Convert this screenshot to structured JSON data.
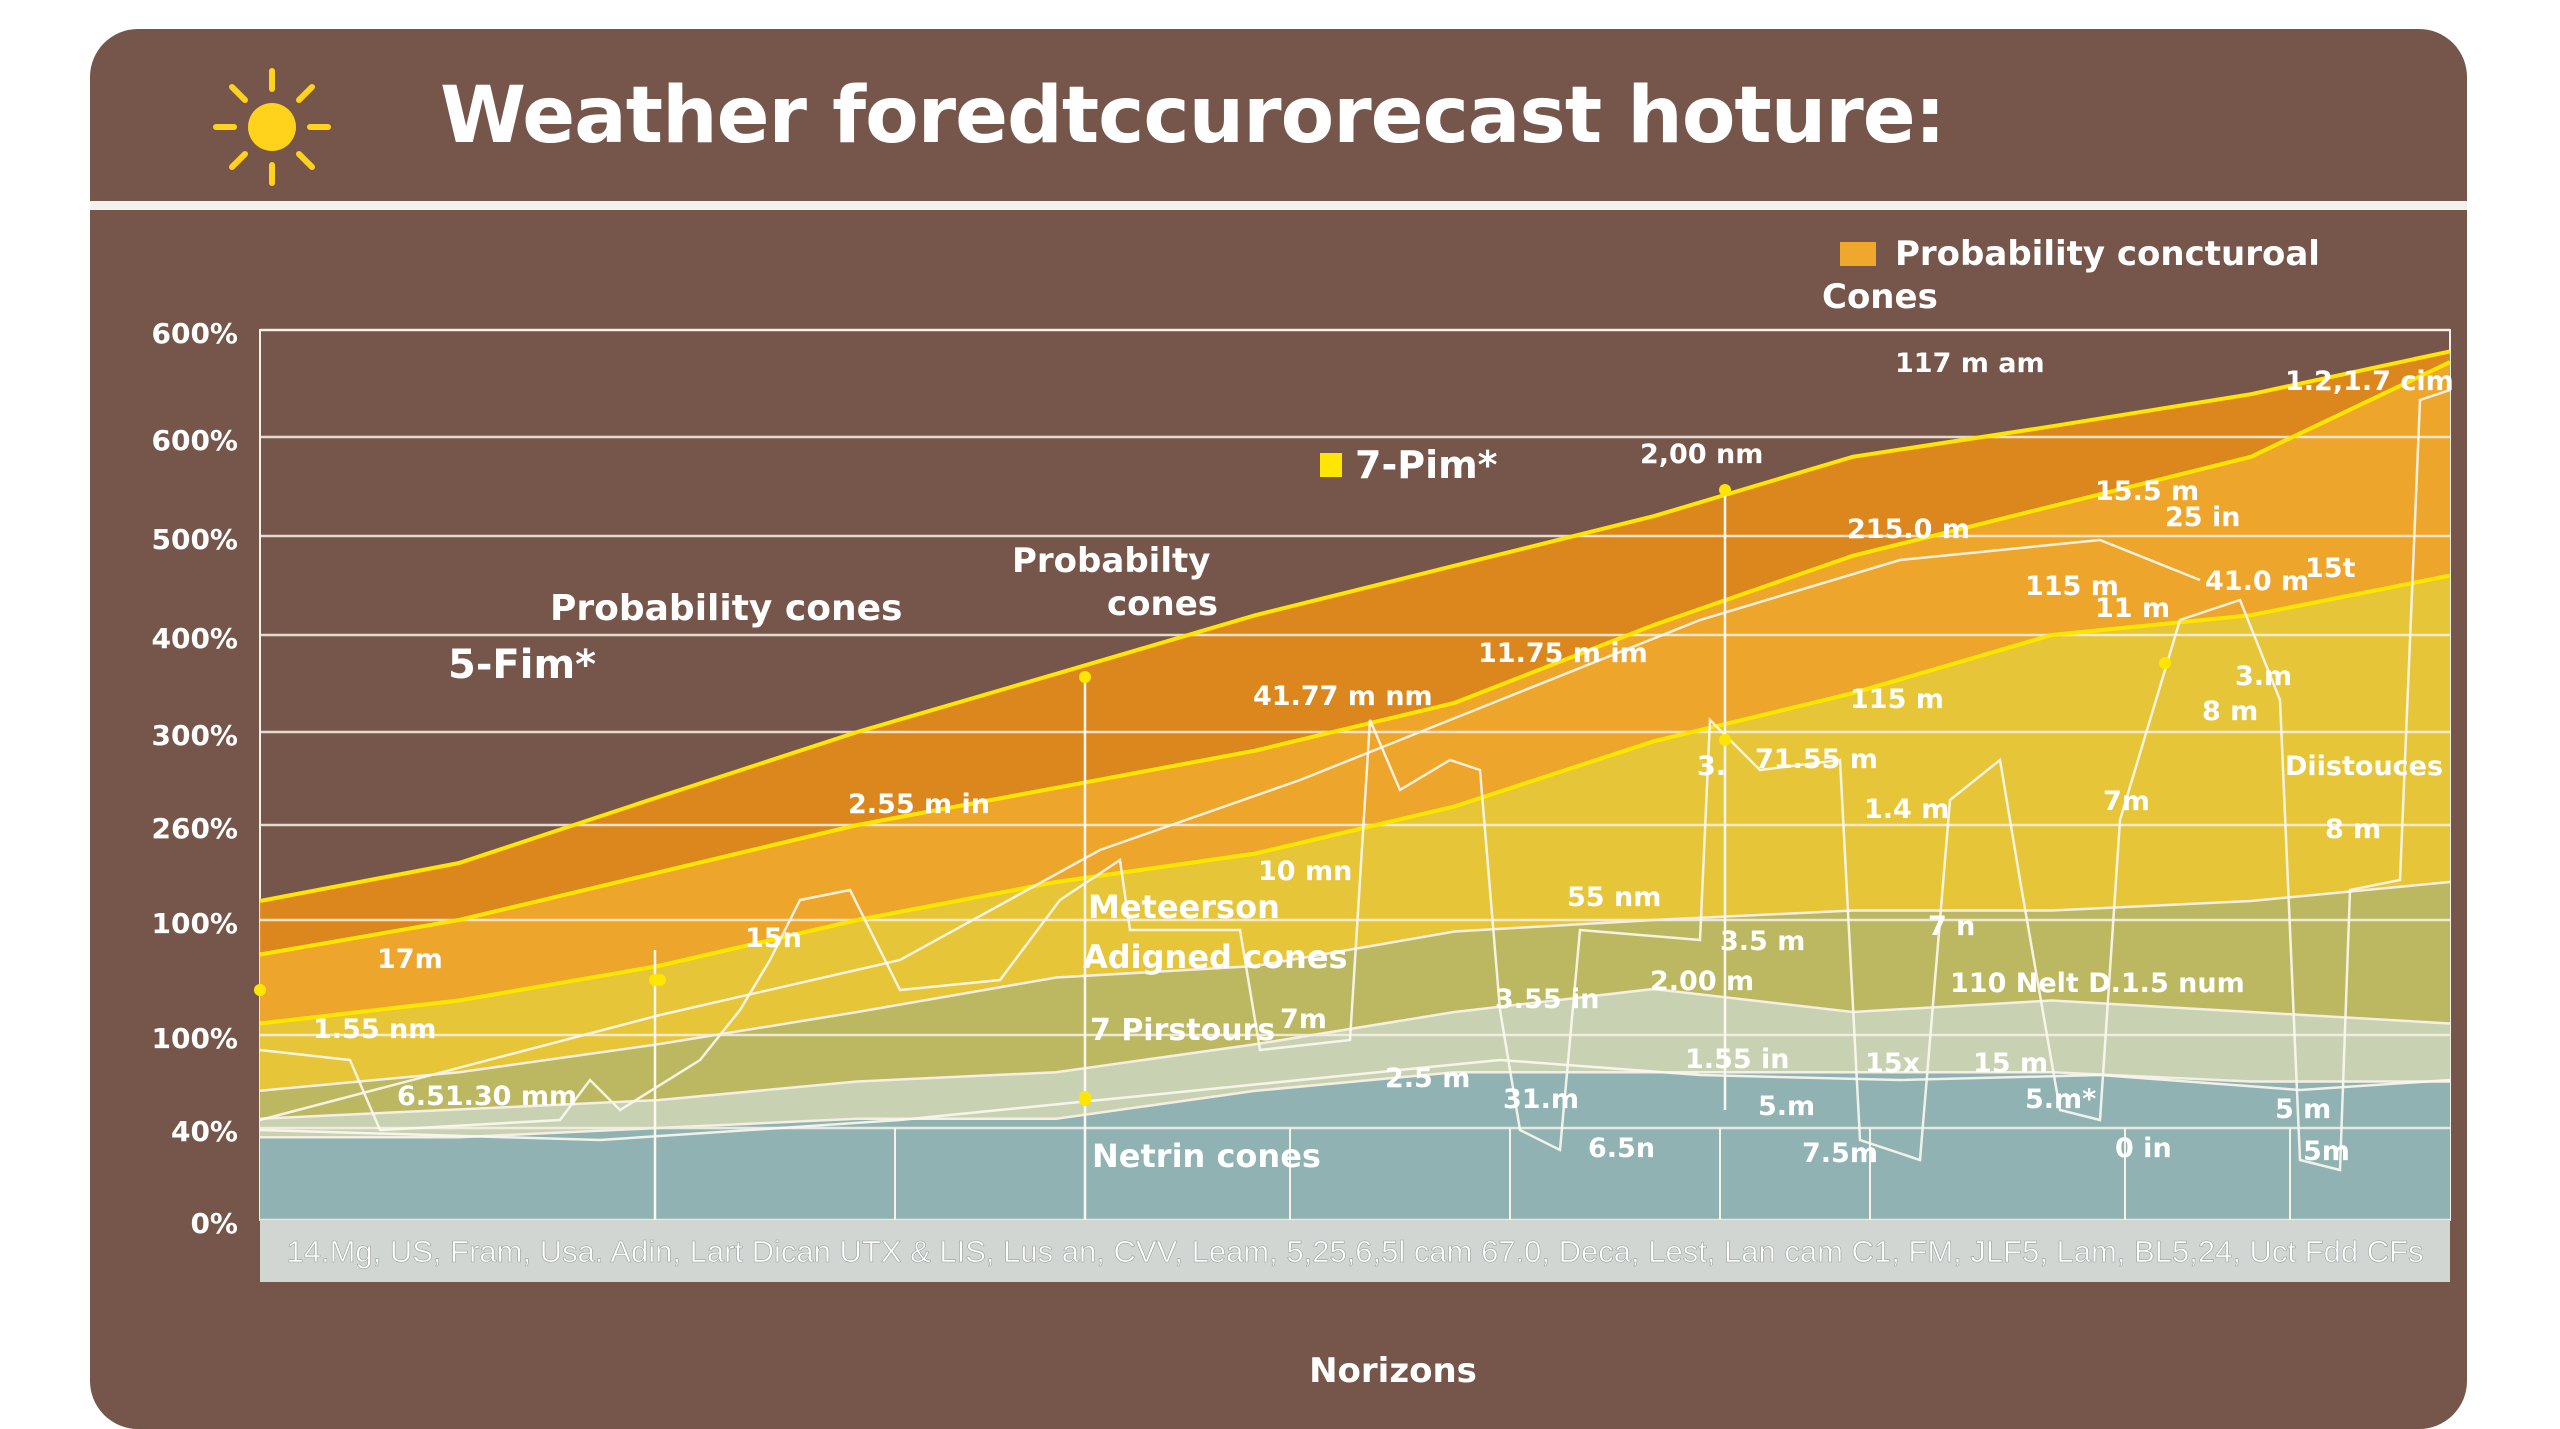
{
  "title": "Weather foredtccurorecast hoture:",
  "icons": {
    "title": "sun-icon"
  },
  "colors": {
    "background": "#76564a",
    "outer_cone": "#e08a1a",
    "middle_cone": "#efa72c",
    "inner_cone": "#e6c63a",
    "green_band": "#b9b763",
    "pale_band": "#c8d3b6",
    "blue_band": "#8db0b2",
    "accent_yellow": "#ffe600"
  },
  "chart_data": {
    "type": "area",
    "title": "Weather foredtccurorecast hoture:",
    "xlabel": "Norizons",
    "ylabel": "",
    "y_tick_labels": [
      "600%",
      "600%",
      "500%",
      "400%",
      "300%",
      "260%",
      "100%",
      "100%",
      "40%",
      "0%"
    ],
    "x_tick_text": "14.Mg, US, Fram, Usa. Adin, Lart Dican UTX & LIS, Lus an, CVV, Leam, 5,25,6,5l cam 67.0, Deca, Lest, Lan cam C1, FM, JLF5, Lam, BL5,24, Uct Fdd CFs",
    "grid": true,
    "legend": {
      "position": "top-right",
      "entries": [
        "Probability concturoal",
        "Cones"
      ]
    },
    "x": [
      0,
      1,
      2,
      3,
      4,
      5,
      6,
      7,
      8,
      9,
      10,
      11
    ],
    "y_scale_note": "tick level index (0 = bottom gridline, 9 = top gridline)",
    "series": [
      {
        "name": "Probability concturoal",
        "values": [
          3.2,
          3.6,
          4.3,
          5.0,
          5.6,
          6.2,
          6.7,
          7.2,
          7.8,
          8.1,
          8.4,
          8.8
        ]
      },
      {
        "values": [
          2.7,
          3.0,
          3.5,
          4.0,
          4.4,
          4.8,
          5.3,
          6.1,
          6.8,
          7.3,
          7.8,
          8.7
        ]
      },
      {
        "values": [
          2.1,
          2.3,
          2.6,
          3.0,
          3.4,
          3.7,
          4.2,
          4.9,
          5.4,
          6.0,
          6.2,
          6.6
        ]
      },
      {
        "values": [
          1.4,
          1.6,
          1.9,
          2.2,
          2.5,
          2.6,
          2.9,
          3.0,
          3.1,
          3.1,
          3.2,
          3.4
        ]
      },
      {
        "values": [
          1.1,
          1.2,
          1.3,
          1.5,
          1.6,
          1.9,
          2.2,
          2.4,
          2.2,
          2.3,
          2.2,
          2.1
        ]
      },
      {
        "values": [
          0.9,
          0.9,
          1.0,
          1.1,
          1.1,
          1.4,
          1.6,
          1.6,
          1.6,
          1.6,
          1.5,
          1.5
        ]
      }
    ],
    "annotations": [
      "Probability cones",
      "5-Fim*",
      "Probabilty",
      "cones",
      "7-Pim*",
      "2,00 nm",
      "117 m am",
      "1.2,1.7 cim",
      "15.5 m",
      "25 in",
      "215.0 m",
      "115 m",
      "11 m",
      "41.0 m",
      "15t",
      "11.75 m im",
      "41.77 m nm",
      "115 m",
      "3.",
      "71.55 m",
      "3.m",
      "8 m",
      "Diistouces",
      "2.55 m in",
      "10 mn",
      "1.4 m",
      "7m",
      "8 m",
      "55 nm",
      "3.5 m",
      "7 n",
      "Meteerson",
      "Adigned cones",
      "17m",
      "15n",
      "1.55 nm",
      "7 Pirstours",
      "7m",
      "3.55 in",
      "2.00 m",
      "110 Nelt D.1.5 num",
      "6.51.30 mm",
      "2.5 m",
      "31.m",
      "1.55 in",
      "15x",
      "15 m",
      "5.m",
      "5.m*",
      "5 m",
      "Netrin cones",
      "6.5n",
      "7.5m",
      "0 in",
      "5m"
    ]
  }
}
